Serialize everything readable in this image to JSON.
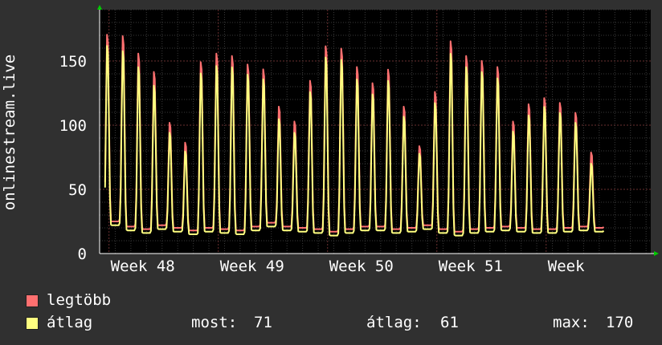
{
  "chart_data": {
    "type": "line",
    "ylabel": "onlinestream.live",
    "ylim": [
      0,
      190
    ],
    "yticks": [
      0,
      50,
      100,
      150
    ],
    "categories": [
      "Week 48",
      "Week 49",
      "Week 50",
      "Week 51",
      "Week"
    ],
    "x_unit": "day",
    "x_range": [
      0,
      35.3
    ],
    "week_tick_days": [
      0.6,
      7.6,
      14.6,
      21.6,
      28.6
    ],
    "grid": true,
    "series": [
      {
        "name": "legtöbb",
        "color": "#ff7070",
        "daily_peaks": [
          176,
          175,
          161,
          146,
          105,
          89,
          154,
          161,
          159,
          152,
          148,
          118,
          106,
          139,
          167,
          165,
          150,
          137,
          148,
          118,
          86,
          130,
          171,
          159,
          155,
          150,
          106,
          120,
          125,
          121,
          113,
          81
        ],
        "daily_mins": [
          25,
          21,
          19,
          22,
          20,
          18,
          20,
          19,
          18,
          21,
          24,
          21,
          20,
          19,
          17,
          19,
          21,
          21,
          19,
          20,
          22,
          19,
          17,
          19,
          20,
          21,
          20,
          19,
          19,
          20,
          21,
          20
        ]
      },
      {
        "name": "átlag",
        "color": "#ffff80",
        "daily_peaks": [
          167,
          163,
          150,
          135,
          97,
          82,
          145,
          151,
          150,
          144,
          140,
          108,
          97,
          130,
          158,
          156,
          140,
          128,
          139,
          110,
          80,
          121,
          161,
          150,
          146,
          141,
          98,
          111,
          118,
          113,
          105,
          72
        ],
        "daily_mins": [
          22,
          18,
          16,
          19,
          17,
          15,
          17,
          16,
          15,
          18,
          21,
          18,
          17,
          16,
          14,
          16,
          18,
          18,
          16,
          17,
          19,
          16,
          14,
          16,
          17,
          18,
          17,
          16,
          16,
          17,
          18,
          17
        ]
      }
    ]
  },
  "legend": {
    "items": [
      {
        "label": "legtöbb",
        "color": "#ff7070"
      },
      {
        "label": "átlag",
        "color": "#ffff80"
      }
    ],
    "now_label": "most:",
    "now_value": "71",
    "avg_label": "átlag:",
    "avg_value": "61",
    "max_label": "max:",
    "max_value": "170"
  }
}
